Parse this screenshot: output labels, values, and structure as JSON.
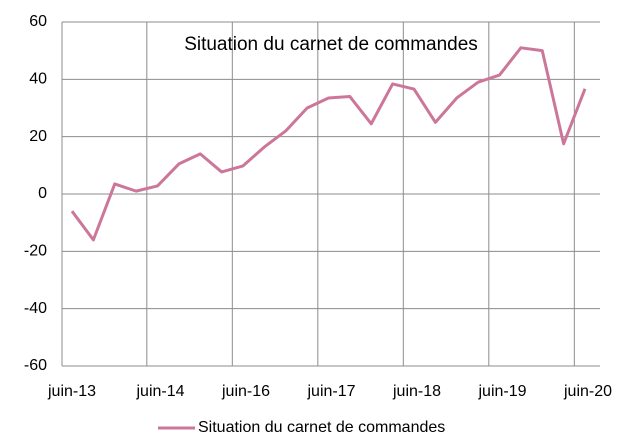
{
  "chart_data": {
    "type": "line",
    "title": "Situation du carnet de commandes",
    "categories": [
      "juin-13",
      null,
      null,
      null,
      "juin-14",
      null,
      null,
      null,
      "juin-16",
      null,
      null,
      null,
      "juin-17",
      null,
      null,
      null,
      "juin-18",
      null,
      null,
      null,
      "juin-19",
      null,
      null,
      null,
      "juin-20"
    ],
    "series": [
      {
        "name": "Situation du carnet de commandes",
        "color": "#cc7799",
        "values": [
          -6,
          -16,
          3.5,
          1,
          2.8,
          10.5,
          14,
          7.7,
          9.8,
          16.4,
          22,
          30,
          33.5,
          34,
          24.5,
          38.4,
          36.6,
          25,
          33.5,
          39,
          41.5,
          51,
          50,
          17.5,
          36.7
        ]
      }
    ],
    "ylim": [
      -60,
      60
    ],
    "yticks": [
      -60,
      -40,
      -20,
      0,
      20,
      40,
      60
    ],
    "grid": true,
    "legend": "bottom"
  }
}
